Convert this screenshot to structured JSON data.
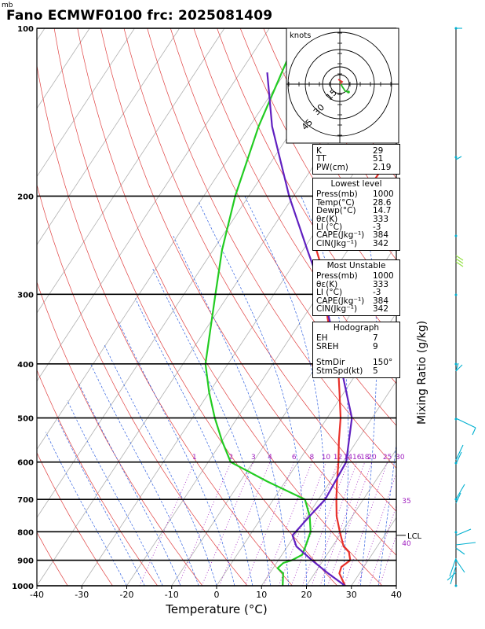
{
  "header": {
    "title": "Fano ECMWF0100  frc: 2025081409",
    "pressure_unit": "mb"
  },
  "chart_data": {
    "type": "line",
    "xlabel": "Temperature (°C)",
    "xlim": [
      -40,
      40
    ],
    "x_ticks": [
      -40,
      -30,
      -20,
      -10,
      0,
      10,
      20,
      30,
      40
    ],
    "ylim": [
      1000,
      100
    ],
    "y_scale": "log",
    "y_ticks": [
      100,
      200,
      300,
      400,
      500,
      600,
      700,
      800,
      900,
      1000
    ],
    "grid": true,
    "mixing_ratio_label": "Mixing Ratio  (g/kg)",
    "mixing_ratio_ticks": [
      "1",
      "2",
      "3",
      "4",
      "6",
      "8",
      "10",
      "12",
      "14",
      "16",
      "18",
      "20",
      "25",
      "30",
      "35",
      "40"
    ],
    "lcl_label": "LCL",
    "lcl_pressure": 812,
    "series": [
      {
        "color": "#e8302a",
        "pressure": [
          1000,
          950,
          925,
          900,
          870,
          850,
          800,
          750,
          700,
          650,
          600,
          550,
          500,
          450,
          400,
          350,
          300,
          270,
          250,
          230,
          200,
          150,
          100
        ],
        "temperature": [
          28.6,
          25.5,
          25,
          26,
          24.5,
          22.5,
          19.5,
          16.5,
          14,
          11.5,
          9,
          6,
          3,
          -1,
          -5.5,
          -12,
          -19,
          -23,
          -27,
          -26.5,
          -24.5,
          -24,
          -27
        ]
      },
      {
        "color": "#22cc22",
        "pressure": [
          1000,
          950,
          930,
          910,
          900,
          880,
          850,
          800,
          750,
          700,
          650,
          600,
          550,
          500,
          450,
          400,
          300,
          250,
          200,
          150,
          100
        ],
        "temperature": [
          14.7,
          13,
          11,
          11.5,
          13,
          14.5,
          14,
          13,
          10.5,
          7,
          -4,
          -15,
          -20,
          -25,
          -30,
          -35,
          -43,
          -48,
          -53,
          -58,
          -63
        ]
      },
      {
        "color": "#6020c0",
        "pressure": [
          1000,
          950,
          900,
          850,
          812,
          750,
          700,
          600,
          500,
          400,
          300,
          250,
          200,
          150,
          120
        ],
        "temperature": [
          28.6,
          23,
          17.5,
          12,
          9.5,
          10.5,
          11.5,
          10.7,
          5.5,
          -5,
          -19,
          -29,
          -41,
          -55,
          -64
        ]
      }
    ]
  },
  "hodograph": {
    "unit": "knots",
    "ring_labels": [
      "15",
      "30",
      "45"
    ]
  },
  "indices": {
    "top": [
      {
        "k": "K",
        "v": "29"
      },
      {
        "k": "TT",
        "v": "51"
      },
      {
        "k": "PW(cm)",
        "v": "2.19"
      }
    ],
    "lowest_title": "Lowest level",
    "lowest": [
      {
        "k": "Press(mb)",
        "v": "1000"
      },
      {
        "k": "Temp(°C)",
        "v": "28.6"
      },
      {
        "k": "Dewp(°C)",
        "v": "14.7"
      },
      {
        "k": "θε(K)",
        "v": "333"
      },
      {
        "k": "LI (°C)",
        "v": "-3"
      },
      {
        "k": "CAPE(Jkg⁻¹)",
        "v": "384"
      },
      {
        "k": "CIN(Jkg⁻¹)",
        "v": "342"
      }
    ],
    "unstable_title": "Most Unstable",
    "unstable": [
      {
        "k": "Press(mb)",
        "v": "1000"
      },
      {
        "k": "θε(K)",
        "v": "333"
      },
      {
        "k": "LI (°C)",
        "v": "-3"
      },
      {
        "k": "CAPE(Jkg⁻¹)",
        "v": "384"
      },
      {
        "k": "CIN(Jkg⁻¹)",
        "v": "342"
      }
    ],
    "hodo_title": "Hodograph",
    "hodo": [
      {
        "k": "EH",
        "v": "7"
      },
      {
        "k": "SREH",
        "v": "9"
      }
    ],
    "storm": [
      {
        "k": "StmDir",
        "v": "150°"
      },
      {
        "k": "StmSpd(kt)",
        "v": "5"
      }
    ]
  }
}
